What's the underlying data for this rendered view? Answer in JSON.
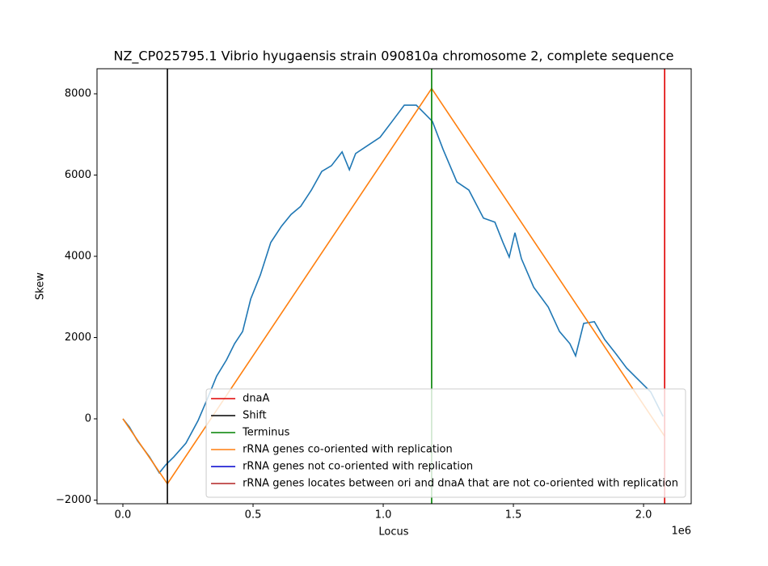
{
  "chart_data": {
    "type": "line",
    "title": "NZ_CP025795.1 Vibrio hyugaensis strain 090810a chromosome 2, complete sequence",
    "x_label": "Locus",
    "y_label": "Skew",
    "x_offset_label": "1e6",
    "xlim": [
      -99400,
      2183000
    ],
    "ylim": [
      -2090,
      8617
    ],
    "xticks": [
      {
        "value": 0,
        "label": "0.0"
      },
      {
        "value": 500000,
        "label": "0.5"
      },
      {
        "value": 1000000,
        "label": "1.0"
      },
      {
        "value": 1500000,
        "label": "1.5"
      },
      {
        "value": 2000000,
        "label": "2.0"
      }
    ],
    "yticks": [
      {
        "value": -2000,
        "label": "−2000"
      },
      0,
      2000,
      4000,
      6000,
      8000
    ],
    "legend": "lower right",
    "vlines": [
      {
        "name": "dnaA",
        "color": "#e00000",
        "x": 2081000
      },
      {
        "name": "Shift",
        "color": "#000000",
        "x": 171000
      },
      {
        "name": "Terminus",
        "color": "#008000",
        "x": 1186000
      }
    ],
    "series": [
      {
        "color": "#1f77b4",
        "x": [
          0,
          25000,
          56000,
          102000,
          140000,
          165000,
          196000,
          242000,
          289000,
          329000,
          360000,
          398000,
          429000,
          460000,
          491000,
          528000,
          568000,
          609000,
          646000,
          683000,
          724000,
          764000,
          801000,
          842000,
          870000,
          894000,
          941000,
          988000,
          1034000,
          1081000,
          1127000,
          1158000,
          1189000,
          1230000,
          1283000,
          1329000,
          1385000,
          1429000,
          1460000,
          1484000,
          1506000,
          1531000,
          1578000,
          1634000,
          1677000,
          1717000,
          1739000,
          1770000,
          1811000,
          1851000,
          1888000,
          1935000,
          1981000,
          2028000,
          2075000
        ],
        "values": [
          0,
          -200,
          -540,
          -935,
          -1330,
          -1130,
          -935,
          -600,
          -40,
          560,
          1050,
          1450,
          1850,
          2150,
          2950,
          3540,
          4340,
          4740,
          5030,
          5230,
          5630,
          6090,
          6230,
          6570,
          6130,
          6530,
          6730,
          6930,
          7320,
          7720,
          7720,
          7520,
          7320,
          6630,
          5830,
          5630,
          4940,
          4840,
          4340,
          3980,
          4580,
          3940,
          3240,
          2750,
          2150,
          1850,
          1550,
          2350,
          2390,
          1950,
          1650,
          1250,
          955,
          657,
          60
        ]
      },
      {
        "name": "rRNA genes co-oriented with replication",
        "color": "#ff7f0e",
        "x": [
          0,
          171000,
          1186000,
          2081000
        ],
        "values": [
          0,
          -1600,
          8130,
          -430
        ]
      },
      {
        "name": "rRNA genes not co-oriented with replication",
        "color": "#0000cd",
        "x": [],
        "values": []
      },
      {
        "name": "rRNA genes locates between ori and dnaA that are not co-oriented with replication",
        "color": "#b22222",
        "x": [],
        "values": []
      }
    ]
  }
}
